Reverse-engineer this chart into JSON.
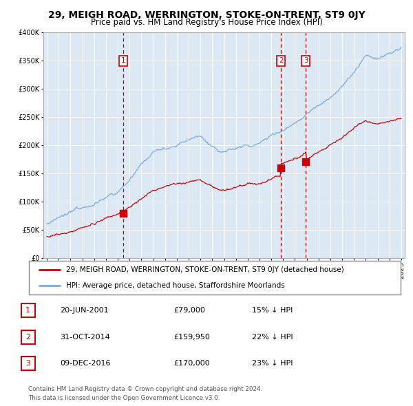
{
  "title": "29, MEIGH ROAD, WERRINGTON, STOKE-ON-TRENT, ST9 0JY",
  "subtitle": "Price paid vs. HM Land Registry's House Price Index (HPI)",
  "legend_line1": "29, MEIGH ROAD, WERRINGTON, STOKE-ON-TRENT, ST9 0JY (detached house)",
  "legend_line2": "HPI: Average price, detached house, Staffordshire Moorlands",
  "sale_dates": [
    "20-JUN-2001",
    "31-OCT-2014",
    "09-DEC-2016"
  ],
  "sale_prices": [
    79000,
    159950,
    170000
  ],
  "sale_hpi_pct": [
    "15% ↓ HPI",
    "22% ↓ HPI",
    "23% ↓ HPI"
  ],
  "sale_years": [
    2001.46,
    2014.83,
    2016.92
  ],
  "footer": "Contains HM Land Registry data © Crown copyright and database right 2024.\nThis data is licensed under the Open Government Licence v3.0.",
  "hpi_color": "#7aaadd",
  "sale_color": "#cc0000",
  "plot_bg": "#dde8f5",
  "ylim": [
    0,
    400000
  ],
  "yticks": [
    0,
    50000,
    100000,
    150000,
    200000,
    250000,
    300000,
    350000,
    400000
  ],
  "xmin": 1994.7,
  "xmax": 2025.3
}
